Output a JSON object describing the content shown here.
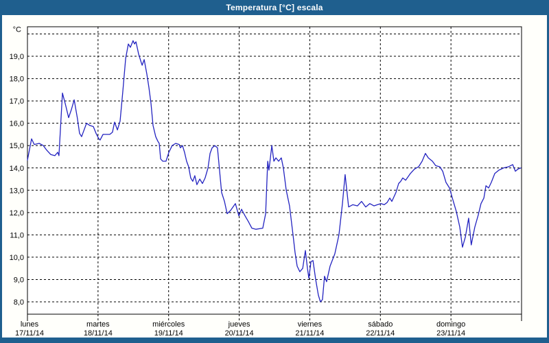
{
  "window": {
    "title": "Temperatura [°C] escala"
  },
  "colors": {
    "titlebar_bg": "#1f5f8e",
    "panel_bg": "#fffffb",
    "plot_bg": "#ffffff",
    "grid": "#000000",
    "axis_border": "#000000",
    "text": "#000000",
    "line": "#2222c0"
  },
  "chart_data": {
    "type": "line",
    "title": "Temperatura [°C] escala",
    "y_unit_label": "°C",
    "ylabel": "",
    "xlabel": "",
    "ylim": [
      8,
      20
    ],
    "grid": "dashed",
    "legend_position": "none",
    "y_ticks": [
      {
        "value": 19,
        "label": "19,0"
      },
      {
        "value": 18,
        "label": "18,0"
      },
      {
        "value": 17,
        "label": "17,0"
      },
      {
        "value": 16,
        "label": "16,0"
      },
      {
        "value": 15,
        "label": "15,0"
      },
      {
        "value": 14,
        "label": "14,0"
      },
      {
        "value": 13,
        "label": "13,0"
      },
      {
        "value": 12,
        "label": "12,0"
      },
      {
        "value": 11,
        "label": "11,0"
      },
      {
        "value": 10,
        "label": "10,0"
      },
      {
        "value": 9,
        "label": "9,0"
      },
      {
        "value": 8,
        "label": "8,0"
      }
    ],
    "x_days": [
      {
        "name": "lunes",
        "date": "17/11/14"
      },
      {
        "name": "martes",
        "date": "18/11/14"
      },
      {
        "name": "miércoles",
        "date": "19/11/14"
      },
      {
        "name": "jueves",
        "date": "20/11/14"
      },
      {
        "name": "viernes",
        "date": "21/11/14"
      },
      {
        "name": "sábado",
        "date": "22/11/14"
      },
      {
        "name": "domingo",
        "date": "23/11/14"
      }
    ],
    "x_hours_total": 168,
    "series": [
      {
        "name": "Temperatura",
        "color": "#2222c0",
        "points_hours_temp": [
          [
            0,
            14.35
          ],
          [
            1.4,
            15.3
          ],
          [
            2.3,
            15.05
          ],
          [
            4,
            15.1
          ],
          [
            5.4,
            15.0
          ],
          [
            6.5,
            14.8
          ],
          [
            7.9,
            14.6
          ],
          [
            9.3,
            14.55
          ],
          [
            10.3,
            14.7
          ],
          [
            10.7,
            14.55
          ],
          [
            11.9,
            17.35
          ],
          [
            12.8,
            16.9
          ],
          [
            14,
            16.25
          ],
          [
            14.9,
            16.6
          ],
          [
            15.9,
            17.05
          ],
          [
            17,
            16.2
          ],
          [
            17.7,
            15.55
          ],
          [
            18.4,
            15.4
          ],
          [
            19.4,
            15.75
          ],
          [
            20.1,
            16.0
          ],
          [
            21.2,
            15.9
          ],
          [
            22.4,
            15.85
          ],
          [
            23.3,
            15.55
          ],
          [
            24.3,
            15.3
          ],
          [
            24.7,
            15.25
          ],
          [
            25.7,
            15.5
          ],
          [
            28,
            15.5
          ],
          [
            28.9,
            15.6
          ],
          [
            29.6,
            16.05
          ],
          [
            30.6,
            15.7
          ],
          [
            31.5,
            16.1
          ],
          [
            32.4,
            17.4
          ],
          [
            33.4,
            18.9
          ],
          [
            34.3,
            19.55
          ],
          [
            35,
            19.4
          ],
          [
            35.9,
            19.7
          ],
          [
            36.4,
            19.55
          ],
          [
            36.9,
            19.65
          ],
          [
            37.8,
            19.1
          ],
          [
            38.5,
            18.8
          ],
          [
            39,
            18.6
          ],
          [
            39.7,
            18.85
          ],
          [
            40.6,
            18.2
          ],
          [
            41.3,
            17.6
          ],
          [
            42,
            16.9
          ],
          [
            42.7,
            15.9
          ],
          [
            43.6,
            15.4
          ],
          [
            44.3,
            15.2
          ],
          [
            44.8,
            15.1
          ],
          [
            45.3,
            14.4
          ],
          [
            46,
            14.3
          ],
          [
            47.1,
            14.3
          ],
          [
            48.1,
            14.7
          ],
          [
            49.2,
            15.0
          ],
          [
            50.4,
            15.1
          ],
          [
            51.6,
            15.05
          ],
          [
            52,
            14.9
          ],
          [
            52.7,
            15.0
          ],
          [
            53.4,
            14.7
          ],
          [
            54.1,
            14.3
          ],
          [
            54.8,
            14.05
          ],
          [
            55.5,
            13.55
          ],
          [
            56.2,
            13.4
          ],
          [
            56.9,
            13.65
          ],
          [
            57.6,
            13.25
          ],
          [
            58.6,
            13.5
          ],
          [
            59.5,
            13.3
          ],
          [
            60.4,
            13.55
          ],
          [
            61.4,
            14.0
          ],
          [
            62.1,
            14.65
          ],
          [
            62.8,
            14.9
          ],
          [
            63.7,
            15.0
          ],
          [
            64.6,
            14.9
          ],
          [
            65.3,
            13.9
          ],
          [
            66,
            12.9
          ],
          [
            67,
            12.5
          ],
          [
            67.9,
            11.95
          ],
          [
            69.1,
            12.1
          ],
          [
            70.7,
            12.4
          ],
          [
            71.9,
            11.85
          ],
          [
            72.8,
            12.15
          ],
          [
            74,
            11.85
          ],
          [
            75.1,
            11.6
          ],
          [
            76.3,
            11.3
          ],
          [
            77.7,
            11.25
          ],
          [
            80,
            11.3
          ],
          [
            81,
            11.95
          ],
          [
            81.7,
            14.3
          ],
          [
            82.1,
            13.9
          ],
          [
            83.1,
            15.0
          ],
          [
            83.8,
            14.3
          ],
          [
            84.5,
            14.45
          ],
          [
            85.4,
            14.3
          ],
          [
            86.3,
            14.45
          ],
          [
            87,
            14.0
          ],
          [
            88,
            13.0
          ],
          [
            89.1,
            12.3
          ],
          [
            90.3,
            11.0
          ],
          [
            91,
            10.2
          ],
          [
            91.7,
            9.6
          ],
          [
            92.6,
            9.35
          ],
          [
            93.6,
            9.5
          ],
          [
            94.5,
            10.3
          ],
          [
            95.2,
            9.5
          ],
          [
            95.7,
            9.05
          ],
          [
            96.4,
            9.8
          ],
          [
            97.1,
            9.85
          ],
          [
            98,
            9.0
          ],
          [
            98.9,
            8.3
          ],
          [
            99.6,
            8.0
          ],
          [
            100.3,
            8.1
          ],
          [
            101,
            9.15
          ],
          [
            101.7,
            8.9
          ],
          [
            102.9,
            9.6
          ],
          [
            104.5,
            10.15
          ],
          [
            105.9,
            11.0
          ],
          [
            107.1,
            12.4
          ],
          [
            108,
            13.7
          ],
          [
            108.5,
            13.1
          ],
          [
            109.2,
            12.25
          ],
          [
            110.6,
            12.35
          ],
          [
            112.2,
            12.3
          ],
          [
            113.6,
            12.5
          ],
          [
            115,
            12.25
          ],
          [
            116.4,
            12.4
          ],
          [
            117.8,
            12.3
          ],
          [
            119,
            12.35
          ],
          [
            120.2,
            12.4
          ],
          [
            121.3,
            12.35
          ],
          [
            122.3,
            12.45
          ],
          [
            123.2,
            12.65
          ],
          [
            123.9,
            12.5
          ],
          [
            125.3,
            12.9
          ],
          [
            126.2,
            13.3
          ],
          [
            126.9,
            13.4
          ],
          [
            127.6,
            13.55
          ],
          [
            128.6,
            13.45
          ],
          [
            130.2,
            13.75
          ],
          [
            131.6,
            13.95
          ],
          [
            133,
            14.05
          ],
          [
            134.2,
            14.3
          ],
          [
            135.3,
            14.65
          ],
          [
            136.3,
            14.45
          ],
          [
            137.7,
            14.3
          ],
          [
            138.8,
            14.1
          ],
          [
            140.2,
            14.05
          ],
          [
            141.2,
            13.85
          ],
          [
            142.3,
            13.35
          ],
          [
            143.5,
            13.1
          ],
          [
            144.7,
            12.55
          ],
          [
            145.8,
            12.05
          ],
          [
            147,
            11.35
          ],
          [
            147.9,
            10.45
          ],
          [
            148.9,
            10.9
          ],
          [
            150,
            11.75
          ],
          [
            150.9,
            10.55
          ],
          [
            152.1,
            11.35
          ],
          [
            153.3,
            11.9
          ],
          [
            154.2,
            12.4
          ],
          [
            155.2,
            12.65
          ],
          [
            155.9,
            13.2
          ],
          [
            156.8,
            13.1
          ],
          [
            157.7,
            13.35
          ],
          [
            158.9,
            13.75
          ],
          [
            160.3,
            13.9
          ],
          [
            161.9,
            14.0
          ],
          [
            163.6,
            14.05
          ],
          [
            165,
            14.15
          ],
          [
            165.9,
            13.85
          ],
          [
            166.8,
            13.95
          ],
          [
            167.8,
            14.0
          ]
        ]
      }
    ]
  }
}
